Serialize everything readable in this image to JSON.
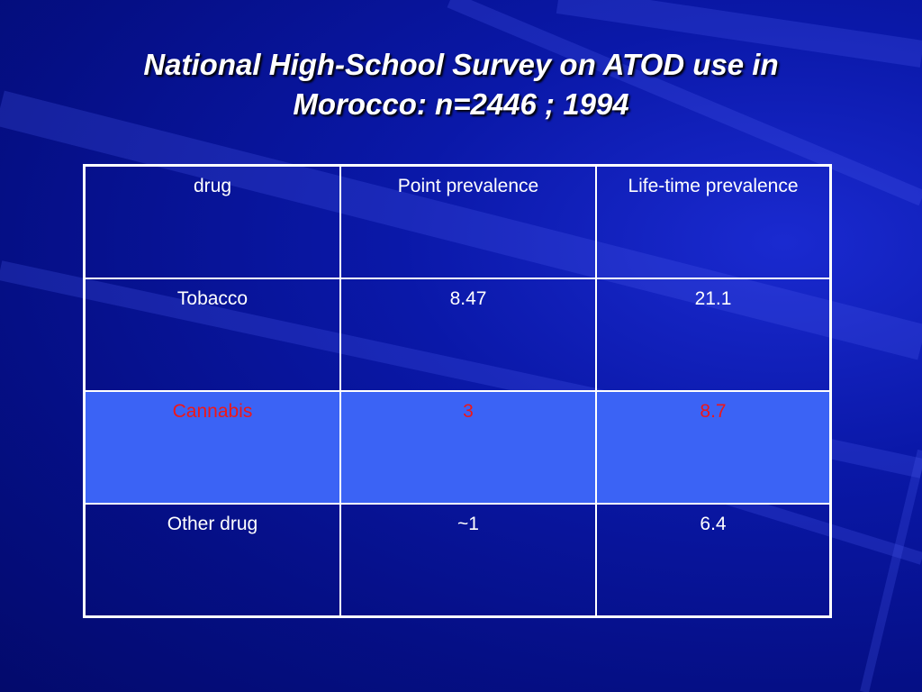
{
  "header": {
    "title_lines": [
      "National High-School Survey on ATOD use in",
      "Morocco: n=2446 ; 1994"
    ]
  },
  "table": {
    "columns": [
      "drug",
      "Point prevalence",
      "Life-time prevalence"
    ],
    "rows": [
      [
        "Tobacco",
        "8.47",
        "21.1"
      ],
      [
        "Cannabis",
        "3",
        "8.7"
      ],
      [
        "Other drug",
        "~1",
        "6.4"
      ]
    ]
  }
}
